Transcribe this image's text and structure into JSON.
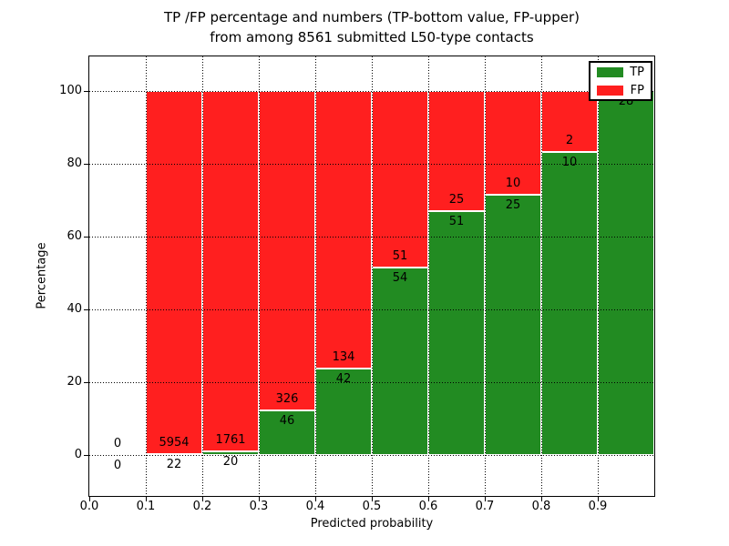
{
  "title": {
    "line1": "TP /FP percentage and numbers (TP-bottom value, FP-upper)",
    "line2": "from among 8561 submitted L50-type contacts"
  },
  "axes": {
    "xlabel": "Predicted probability",
    "ylabel": "Percentage",
    "x_tick_labels": [
      "0.0",
      "0.1",
      "0.2",
      "0.3",
      "0.4",
      "0.5",
      "0.6",
      "0.7",
      "0.8",
      "0.9"
    ],
    "y_tick_labels": [
      "0",
      "20",
      "40",
      "60",
      "80",
      "100"
    ],
    "y_tick_values": [
      0,
      20,
      40,
      60,
      80,
      100
    ]
  },
  "legend": {
    "position": "upper-right",
    "entries": [
      {
        "label": "TP",
        "color": "#228b22"
      },
      {
        "label": "FP",
        "color": "#ff1f1f"
      }
    ]
  },
  "colors": {
    "tp": "#228b22",
    "fp": "#ff1f1f",
    "grid": "#000000",
    "background": "#ffffff",
    "bar_edge": "#ffffff"
  },
  "chart_data": {
    "type": "bar",
    "stacked": true,
    "normalized": "each bar scaled to 100%, labels show raw counts (TP bottom, FP upper)",
    "title": "TP /FP percentage and numbers (TP-bottom value, FP-upper) from among 8561 submitted L50-type contacts",
    "xlabel": "Predicted probability",
    "ylabel": "Percentage",
    "xlim": [
      0.0,
      1.0
    ],
    "ylim": [
      0,
      100
    ],
    "grid": true,
    "total_contacts": 8561,
    "series_names": [
      "TP",
      "FP"
    ],
    "bins": [
      {
        "x_start": 0.0,
        "x_end": 0.1,
        "tp": 0,
        "fp": 0
      },
      {
        "x_start": 0.1,
        "x_end": 0.2,
        "tp": 22,
        "fp": 5954
      },
      {
        "x_start": 0.2,
        "x_end": 0.3,
        "tp": 20,
        "fp": 1761
      },
      {
        "x_start": 0.3,
        "x_end": 0.4,
        "tp": 46,
        "fp": 326
      },
      {
        "x_start": 0.4,
        "x_end": 0.5,
        "tp": 42,
        "fp": 134
      },
      {
        "x_start": 0.5,
        "x_end": 0.6,
        "tp": 54,
        "fp": 51
      },
      {
        "x_start": 0.6,
        "x_end": 0.7,
        "tp": 51,
        "fp": 25
      },
      {
        "x_start": 0.7,
        "x_end": 0.8,
        "tp": 25,
        "fp": 10
      },
      {
        "x_start": 0.8,
        "x_end": 0.9,
        "tp": 10,
        "fp": 2
      },
      {
        "x_start": 0.9,
        "x_end": 1.0,
        "tp": 28,
        "fp": 0
      }
    ]
  }
}
